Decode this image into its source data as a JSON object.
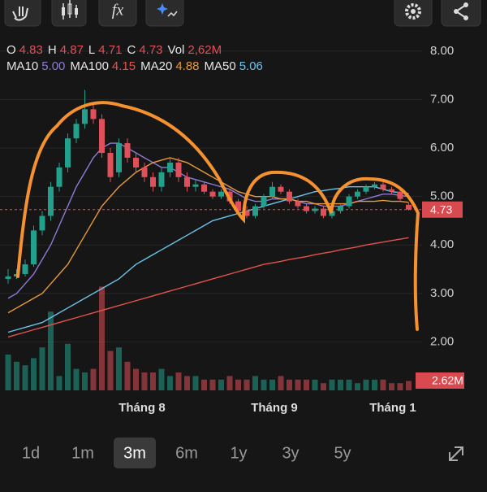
{
  "toolbar": {
    "fx": "fx"
  },
  "legend": {
    "ohlc": [
      {
        "label": "O",
        "value": "4.83"
      },
      {
        "label": "H",
        "value": "4.87"
      },
      {
        "label": "L",
        "value": "4.71"
      },
      {
        "label": "C",
        "value": "4.73"
      },
      {
        "label": "Vol",
        "value": "2,62M"
      }
    ]
  },
  "chart_data": {
    "type": "candlestick",
    "open": [
      3.3,
      3.35,
      3.4,
      3.6,
      4.3,
      4.6,
      5.2,
      5.6,
      6.2,
      6.5,
      6.8,
      6.6,
      5.9,
      5.5,
      6.1,
      5.8,
      5.6,
      5.4,
      5.2,
      5.5,
      5.7,
      5.4,
      5.2,
      5.25,
      5.1,
      5.0,
      5.1,
      4.9,
      4.7,
      4.6,
      4.8,
      5.0,
      5.2,
      5.1,
      4.9,
      4.8,
      4.7,
      4.75,
      4.6,
      4.7,
      4.8,
      5.0,
      5.1,
      5.2,
      5.25,
      5.15,
      5.1,
      4.83
    ],
    "high": [
      3.5,
      3.5,
      3.7,
      4.4,
      4.7,
      5.3,
      5.7,
      6.3,
      6.6,
      7.2,
      6.9,
      6.7,
      6.0,
      6.2,
      6.2,
      5.9,
      5.7,
      5.5,
      5.6,
      5.8,
      5.8,
      5.5,
      5.35,
      5.3,
      5.15,
      5.15,
      5.15,
      4.95,
      4.8,
      4.85,
      5.05,
      5.3,
      5.25,
      5.15,
      4.95,
      4.85,
      4.8,
      4.8,
      4.75,
      4.85,
      5.05,
      5.15,
      5.25,
      5.3,
      5.3,
      5.2,
      5.15,
      4.87
    ],
    "low": [
      3.2,
      3.3,
      3.35,
      3.55,
      4.2,
      4.5,
      5.1,
      5.5,
      6.1,
      6.4,
      6.5,
      5.8,
      5.3,
      5.4,
      5.7,
      5.5,
      5.3,
      5.1,
      5.1,
      5.4,
      5.3,
      5.1,
      5.1,
      5.05,
      4.95,
      4.95,
      4.85,
      4.65,
      4.55,
      4.55,
      4.75,
      4.95,
      5.05,
      4.85,
      4.75,
      4.65,
      4.65,
      4.55,
      4.55,
      4.65,
      4.75,
      4.95,
      5.05,
      5.15,
      5.1,
      5.05,
      4.9,
      4.71
    ],
    "close": [
      3.35,
      3.4,
      3.6,
      4.3,
      4.6,
      5.2,
      5.6,
      6.2,
      6.5,
      6.8,
      6.6,
      5.9,
      5.4,
      6.1,
      5.8,
      5.6,
      5.4,
      5.2,
      5.5,
      5.7,
      5.4,
      5.2,
      5.25,
      5.1,
      5.0,
      5.1,
      4.9,
      4.7,
      4.6,
      4.8,
      5.0,
      5.2,
      5.1,
      4.9,
      4.8,
      4.7,
      4.75,
      4.6,
      4.7,
      4.8,
      5.0,
      5.1,
      5.2,
      5.25,
      5.15,
      5.1,
      4.95,
      4.73
    ],
    "volume": [
      10,
      8,
      7,
      9,
      12,
      22,
      4,
      13,
      6,
      5,
      6,
      29,
      11,
      12,
      8,
      6,
      5,
      5,
      6,
      4,
      5,
      4,
      4,
      3,
      3,
      3,
      4,
      3,
      3,
      4,
      3,
      3,
      4,
      3,
      3,
      3,
      3,
      2,
      3,
      3,
      3,
      2,
      3,
      3,
      3,
      2,
      2,
      2.62
    ],
    "up_color": "#22a08c",
    "down_color": "#e0505a",
    "series": [
      {
        "name": "MA10",
        "value_label": "5.00",
        "color": "#8f7ad8",
        "values": [
          2.9,
          3.0,
          3.2,
          3.4,
          3.7,
          4.0,
          4.4,
          4.8,
          5.2,
          5.5,
          5.8,
          6.0,
          6.1,
          6.1,
          6.0,
          5.9,
          5.8,
          5.7,
          5.6,
          5.6,
          5.5,
          5.4,
          5.35,
          5.3,
          5.25,
          5.2,
          5.15,
          5.05,
          4.95,
          4.9,
          4.9,
          4.95,
          4.95,
          4.95,
          4.9,
          4.85,
          4.85,
          4.8,
          4.8,
          4.8,
          4.85,
          4.9,
          4.95,
          5.0,
          5.05,
          5.05,
          5.02,
          5.0
        ]
      },
      {
        "name": "MA100",
        "value_label": "4.15",
        "color": "#e4524e",
        "values": [
          2.1,
          2.15,
          2.2,
          2.25,
          2.3,
          2.35,
          2.4,
          2.45,
          2.5,
          2.55,
          2.6,
          2.65,
          2.7,
          2.75,
          2.8,
          2.85,
          2.9,
          2.95,
          3.0,
          3.05,
          3.1,
          3.15,
          3.2,
          3.25,
          3.3,
          3.35,
          3.4,
          3.45,
          3.5,
          3.55,
          3.6,
          3.63,
          3.66,
          3.7,
          3.73,
          3.76,
          3.8,
          3.83,
          3.86,
          3.9,
          3.93,
          3.96,
          4.0,
          4.03,
          4.06,
          4.09,
          4.12,
          4.15
        ]
      },
      {
        "name": "MA20",
        "value_label": "4.88",
        "color": "#e89a3c",
        "values": [
          2.6,
          2.7,
          2.8,
          2.9,
          3.0,
          3.2,
          3.4,
          3.6,
          3.9,
          4.2,
          4.5,
          4.8,
          5.0,
          5.2,
          5.35,
          5.5,
          5.6,
          5.7,
          5.75,
          5.8,
          5.75,
          5.7,
          5.6,
          5.5,
          5.4,
          5.3,
          5.2,
          5.1,
          5.05,
          5.0,
          5.0,
          5.0,
          4.95,
          4.95,
          4.9,
          4.9,
          4.85,
          4.85,
          4.85,
          4.85,
          4.85,
          4.9,
          4.9,
          4.9,
          4.92,
          4.9,
          4.9,
          4.88
        ]
      },
      {
        "name": "MA50",
        "value_label": "5.06",
        "color": "#6cc3e8",
        "values": [
          2.2,
          2.25,
          2.3,
          2.35,
          2.4,
          2.5,
          2.6,
          2.7,
          2.8,
          2.9,
          3.0,
          3.1,
          3.2,
          3.3,
          3.45,
          3.6,
          3.7,
          3.8,
          3.9,
          4.0,
          4.1,
          4.2,
          4.3,
          4.4,
          4.5,
          4.55,
          4.6,
          4.65,
          4.7,
          4.75,
          4.8,
          4.85,
          4.9,
          4.95,
          5.0,
          5.05,
          5.1,
          5.12,
          5.15,
          5.17,
          5.2,
          5.2,
          5.2,
          5.2,
          5.15,
          5.1,
          5.08,
          5.06
        ]
      }
    ],
    "ylim": [
      1,
      8.3
    ],
    "yticks": [
      {
        "value": 8,
        "label": "8.00"
      },
      {
        "value": 7,
        "label": "7.00"
      },
      {
        "value": 6,
        "label": "6.00"
      },
      {
        "value": 5,
        "label": "5.00"
      },
      {
        "value": 4,
        "label": "4.00"
      },
      {
        "value": 3,
        "label": "3.00"
      },
      {
        "value": 2,
        "label": "2.00"
      }
    ],
    "last_price": {
      "value": 4.73,
      "label": "4.73"
    },
    "volume_tag": "2.62M",
    "x_labels": [
      "Tháng 8",
      "Tháng 9",
      "Tháng 1"
    ]
  },
  "timeframes": {
    "options": [
      "1d",
      "1m",
      "3m",
      "6m",
      "1y",
      "3y",
      "5y"
    ],
    "selected": 2
  }
}
